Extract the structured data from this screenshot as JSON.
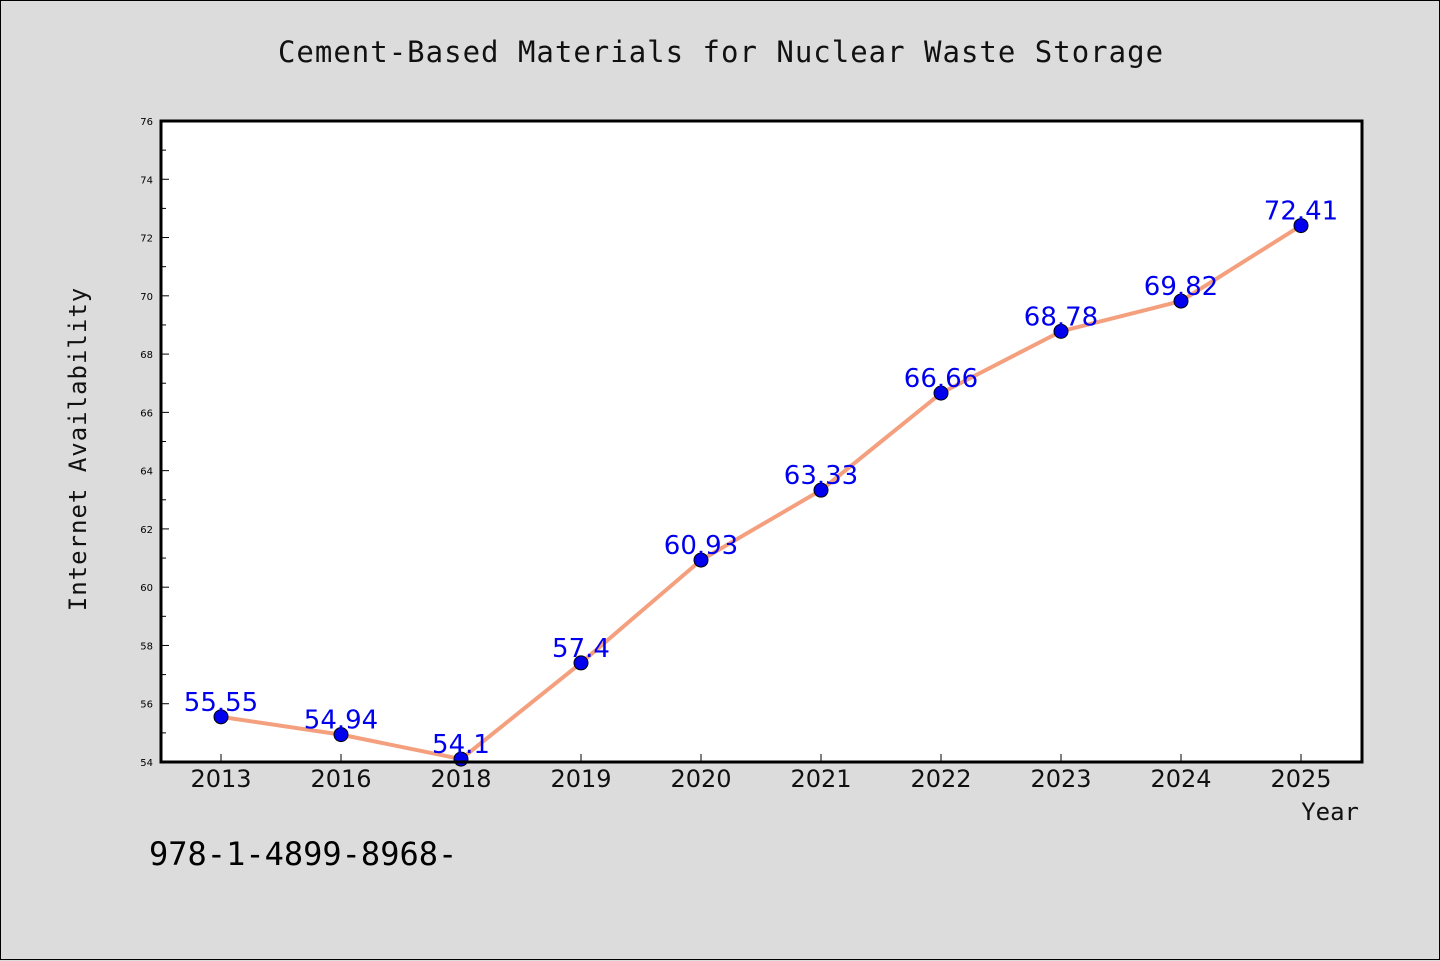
{
  "chart_data": {
    "type": "line",
    "title": "Cement-Based Materials for Nuclear Waste Storage",
    "xlabel": "Year",
    "ylabel": "Internet Availability",
    "categories": [
      "2013",
      "2016",
      "2018",
      "2019",
      "2020",
      "2021",
      "2022",
      "2023",
      "2024",
      "2025"
    ],
    "values": [
      55.55,
      54.94,
      54.1,
      57.4,
      60.93,
      63.33,
      66.66,
      68.78,
      69.82,
      72.41
    ],
    "data_labels": [
      "55.55",
      "54.94",
      "54.1",
      "57.4",
      "60.93",
      "63.33",
      "66.66",
      "68.78",
      "69.82",
      "72.41"
    ],
    "ylim": [
      54,
      76
    ],
    "yticks": [
      "54",
      "56",
      "58",
      "60",
      "62",
      "64",
      "66",
      "68",
      "70",
      "72",
      "74",
      "76"
    ],
    "line_color": "#f4a07e",
    "marker_color": "#0000ee",
    "label_color": "#0000ee",
    "grid": false
  },
  "footer": {
    "isbn": "978-1-4899-8968-"
  }
}
